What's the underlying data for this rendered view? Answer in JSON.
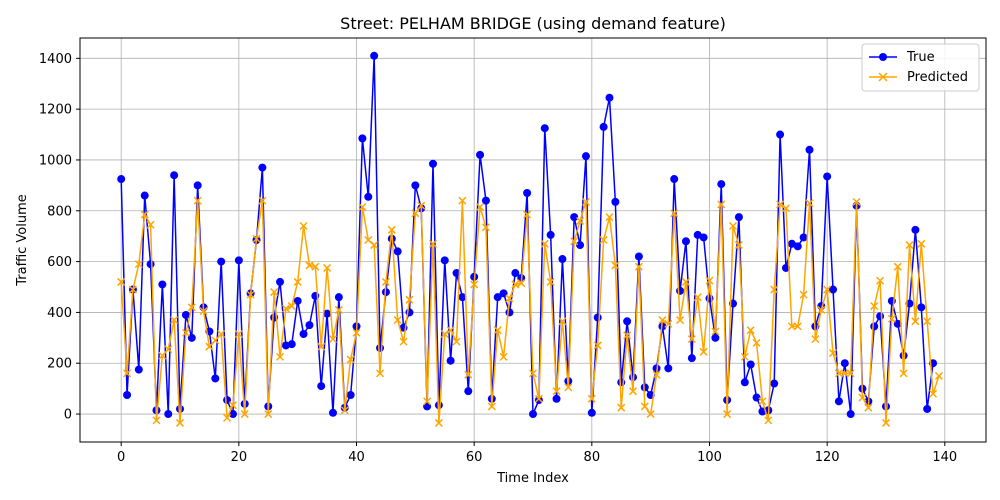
{
  "chart_data": {
    "type": "line",
    "title": "Street: PELHAM BRIDGE (using demand feature)",
    "xlabel": "Time Index",
    "ylabel": "Traffic Volume",
    "xlim": [
      -7,
      147
    ],
    "ylim": [
      -110,
      1480
    ],
    "xticks": [
      0,
      20,
      40,
      60,
      80,
      100,
      120,
      140
    ],
    "yticks": [
      0,
      200,
      400,
      600,
      800,
      1000,
      1200,
      1400
    ],
    "grid": true,
    "legend_position": "top-right",
    "series": [
      {
        "name": "True",
        "color": "#0000ff",
        "marker": "circle",
        "values": [
          925,
          75,
          490,
          175,
          860,
          590,
          15,
          510,
          0,
          940,
          20,
          390,
          300,
          900,
          420,
          325,
          140,
          600,
          55,
          0,
          605,
          40,
          475,
          685,
          970,
          30,
          380,
          520,
          270,
          275,
          445,
          315,
          350,
          465,
          110,
          395,
          5,
          460,
          25,
          75,
          345,
          1085,
          855,
          1410,
          260,
          480,
          690,
          640,
          340,
          400,
          900,
          810,
          30,
          985,
          35,
          605,
          210,
          555,
          460,
          90,
          540,
          1020,
          840,
          60,
          460,
          475,
          400,
          555,
          535,
          870,
          0,
          55,
          1125,
          705,
          60,
          610,
          130,
          775,
          665,
          1015,
          5,
          380,
          1130,
          1245,
          835,
          125,
          365,
          145,
          620,
          105,
          75,
          180,
          345,
          180,
          925,
          485,
          680,
          220,
          705,
          695,
          455,
          300,
          905,
          55,
          435,
          775,
          125,
          195,
          65,
          10,
          15,
          120,
          1100,
          575,
          670,
          660,
          695,
          1040,
          345,
          425,
          935,
          490,
          50,
          200,
          0,
          820,
          100,
          50,
          345,
          385,
          30,
          445,
          355,
          230,
          435,
          725,
          420,
          20,
          200
        ]
      },
      {
        "name": "Predicted",
        "color": "#ffa500",
        "marker": "x",
        "values": [
          520,
          160,
          490,
          590,
          785,
          745,
          -25,
          230,
          255,
          370,
          -35,
          320,
          420,
          840,
          405,
          265,
          290,
          315,
          -15,
          35,
          315,
          0,
          470,
          690,
          840,
          0,
          480,
          225,
          415,
          425,
          520,
          740,
          585,
          580,
          265,
          575,
          295,
          410,
          15,
          215,
          320,
          815,
          685,
          665,
          160,
          520,
          725,
          370,
          285,
          450,
          790,
          820,
          50,
          670,
          -35,
          315,
          330,
          285,
          840,
          155,
          510,
          815,
          735,
          30,
          330,
          225,
          455,
          510,
          515,
          785,
          160,
          60,
          670,
          520,
          90,
          365,
          105,
          680,
          760,
          835,
          60,
          270,
          685,
          775,
          585,
          25,
          310,
          90,
          580,
          30,
          0,
          155,
          370,
          355,
          790,
          370,
          520,
          295,
          460,
          245,
          525,
          325,
          825,
          0,
          740,
          665,
          225,
          330,
          280,
          50,
          -25,
          490,
          825,
          810,
          345,
          345,
          470,
          830,
          295,
          410,
          490,
          240,
          160,
          160,
          160,
          835,
          65,
          25,
          425,
          525,
          -35,
          375,
          580,
          160,
          665,
          365,
          670,
          365,
          80,
          150
        ]
      }
    ]
  }
}
